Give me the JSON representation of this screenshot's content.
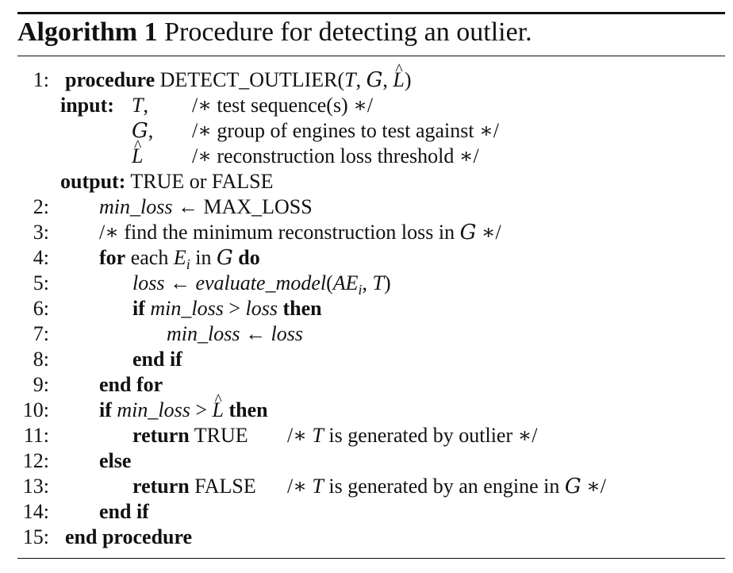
{
  "title": {
    "label": "Algorithm 1",
    "text": "Procedure for detecting an outlier."
  },
  "lines": {
    "l1": {
      "num": "1:",
      "kw": "procedure",
      "name": "DETECT_OUTLIER",
      "args_open": "(",
      "a1": "T",
      "sep1": ", ",
      "a2": "G",
      "sep2": ", ",
      "a3": "L",
      "args_close": ")"
    },
    "in1": {
      "kw": "input:",
      "var": "T",
      "punct": ",",
      "comment": "/∗ test sequence(s) ∗/"
    },
    "in2": {
      "var": "G",
      "punct": ",",
      "comment": "/∗ group of engines to test against ∗/"
    },
    "in3": {
      "var": "L",
      "comment": "/∗ reconstruction loss threshold ∗/"
    },
    "out": {
      "kw": "output:",
      "text": "TRUE or FALSE"
    },
    "l2": {
      "num": "2:",
      "var": "min_loss",
      "arrow": " ← ",
      "val": "MAX_LOSS"
    },
    "l3": {
      "num": "3:",
      "comment_a": "/∗ find the minimum reconstruction loss in ",
      "var": "G",
      "comment_b": " ∗/"
    },
    "l4": {
      "num": "4:",
      "kw1": "for",
      "text1": " each ",
      "var1": "E",
      "sub": "i",
      "text2": " in ",
      "var2": "G",
      "kw2": "do"
    },
    "l5": {
      "num": "5:",
      "var1": "loss",
      "arrow": " ← ",
      "fn": "evaluate_model",
      "open": "(",
      "arg1": "AE",
      "sub": "i",
      "comma": ", ",
      "arg2": "T",
      "close": ")"
    },
    "l6": {
      "num": "6:",
      "kw1": "if",
      "var1": "min_loss",
      "op": " > ",
      "var2": "loss",
      "kw2": "then"
    },
    "l7": {
      "num": "7:",
      "var1": "min_loss",
      "arrow": " ← ",
      "var2": "loss"
    },
    "l8": {
      "num": "8:",
      "kw": "end if"
    },
    "l9": {
      "num": "9:",
      "kw": "end for"
    },
    "l10": {
      "num": "10:",
      "kw1": "if",
      "var1": "min_loss",
      "op": " > ",
      "var2": "L",
      "kw2": "then"
    },
    "l11": {
      "num": "11:",
      "kw": "return",
      "text": "TRUE",
      "comment_a": "/∗ ",
      "var": "T",
      "comment_b": " is generated by outlier ∗/"
    },
    "l12": {
      "num": "12:",
      "kw": "else"
    },
    "l13": {
      "num": "13:",
      "kw": "return",
      "text": "FALSE",
      "comment_a": "/∗ ",
      "var": "T",
      "comment_b": " is generated by an engine in ",
      "var2": "G",
      "comment_c": " ∗/"
    },
    "l14": {
      "num": "14:",
      "kw": "end if"
    },
    "l15": {
      "num": "15:",
      "kw": "end procedure"
    }
  }
}
